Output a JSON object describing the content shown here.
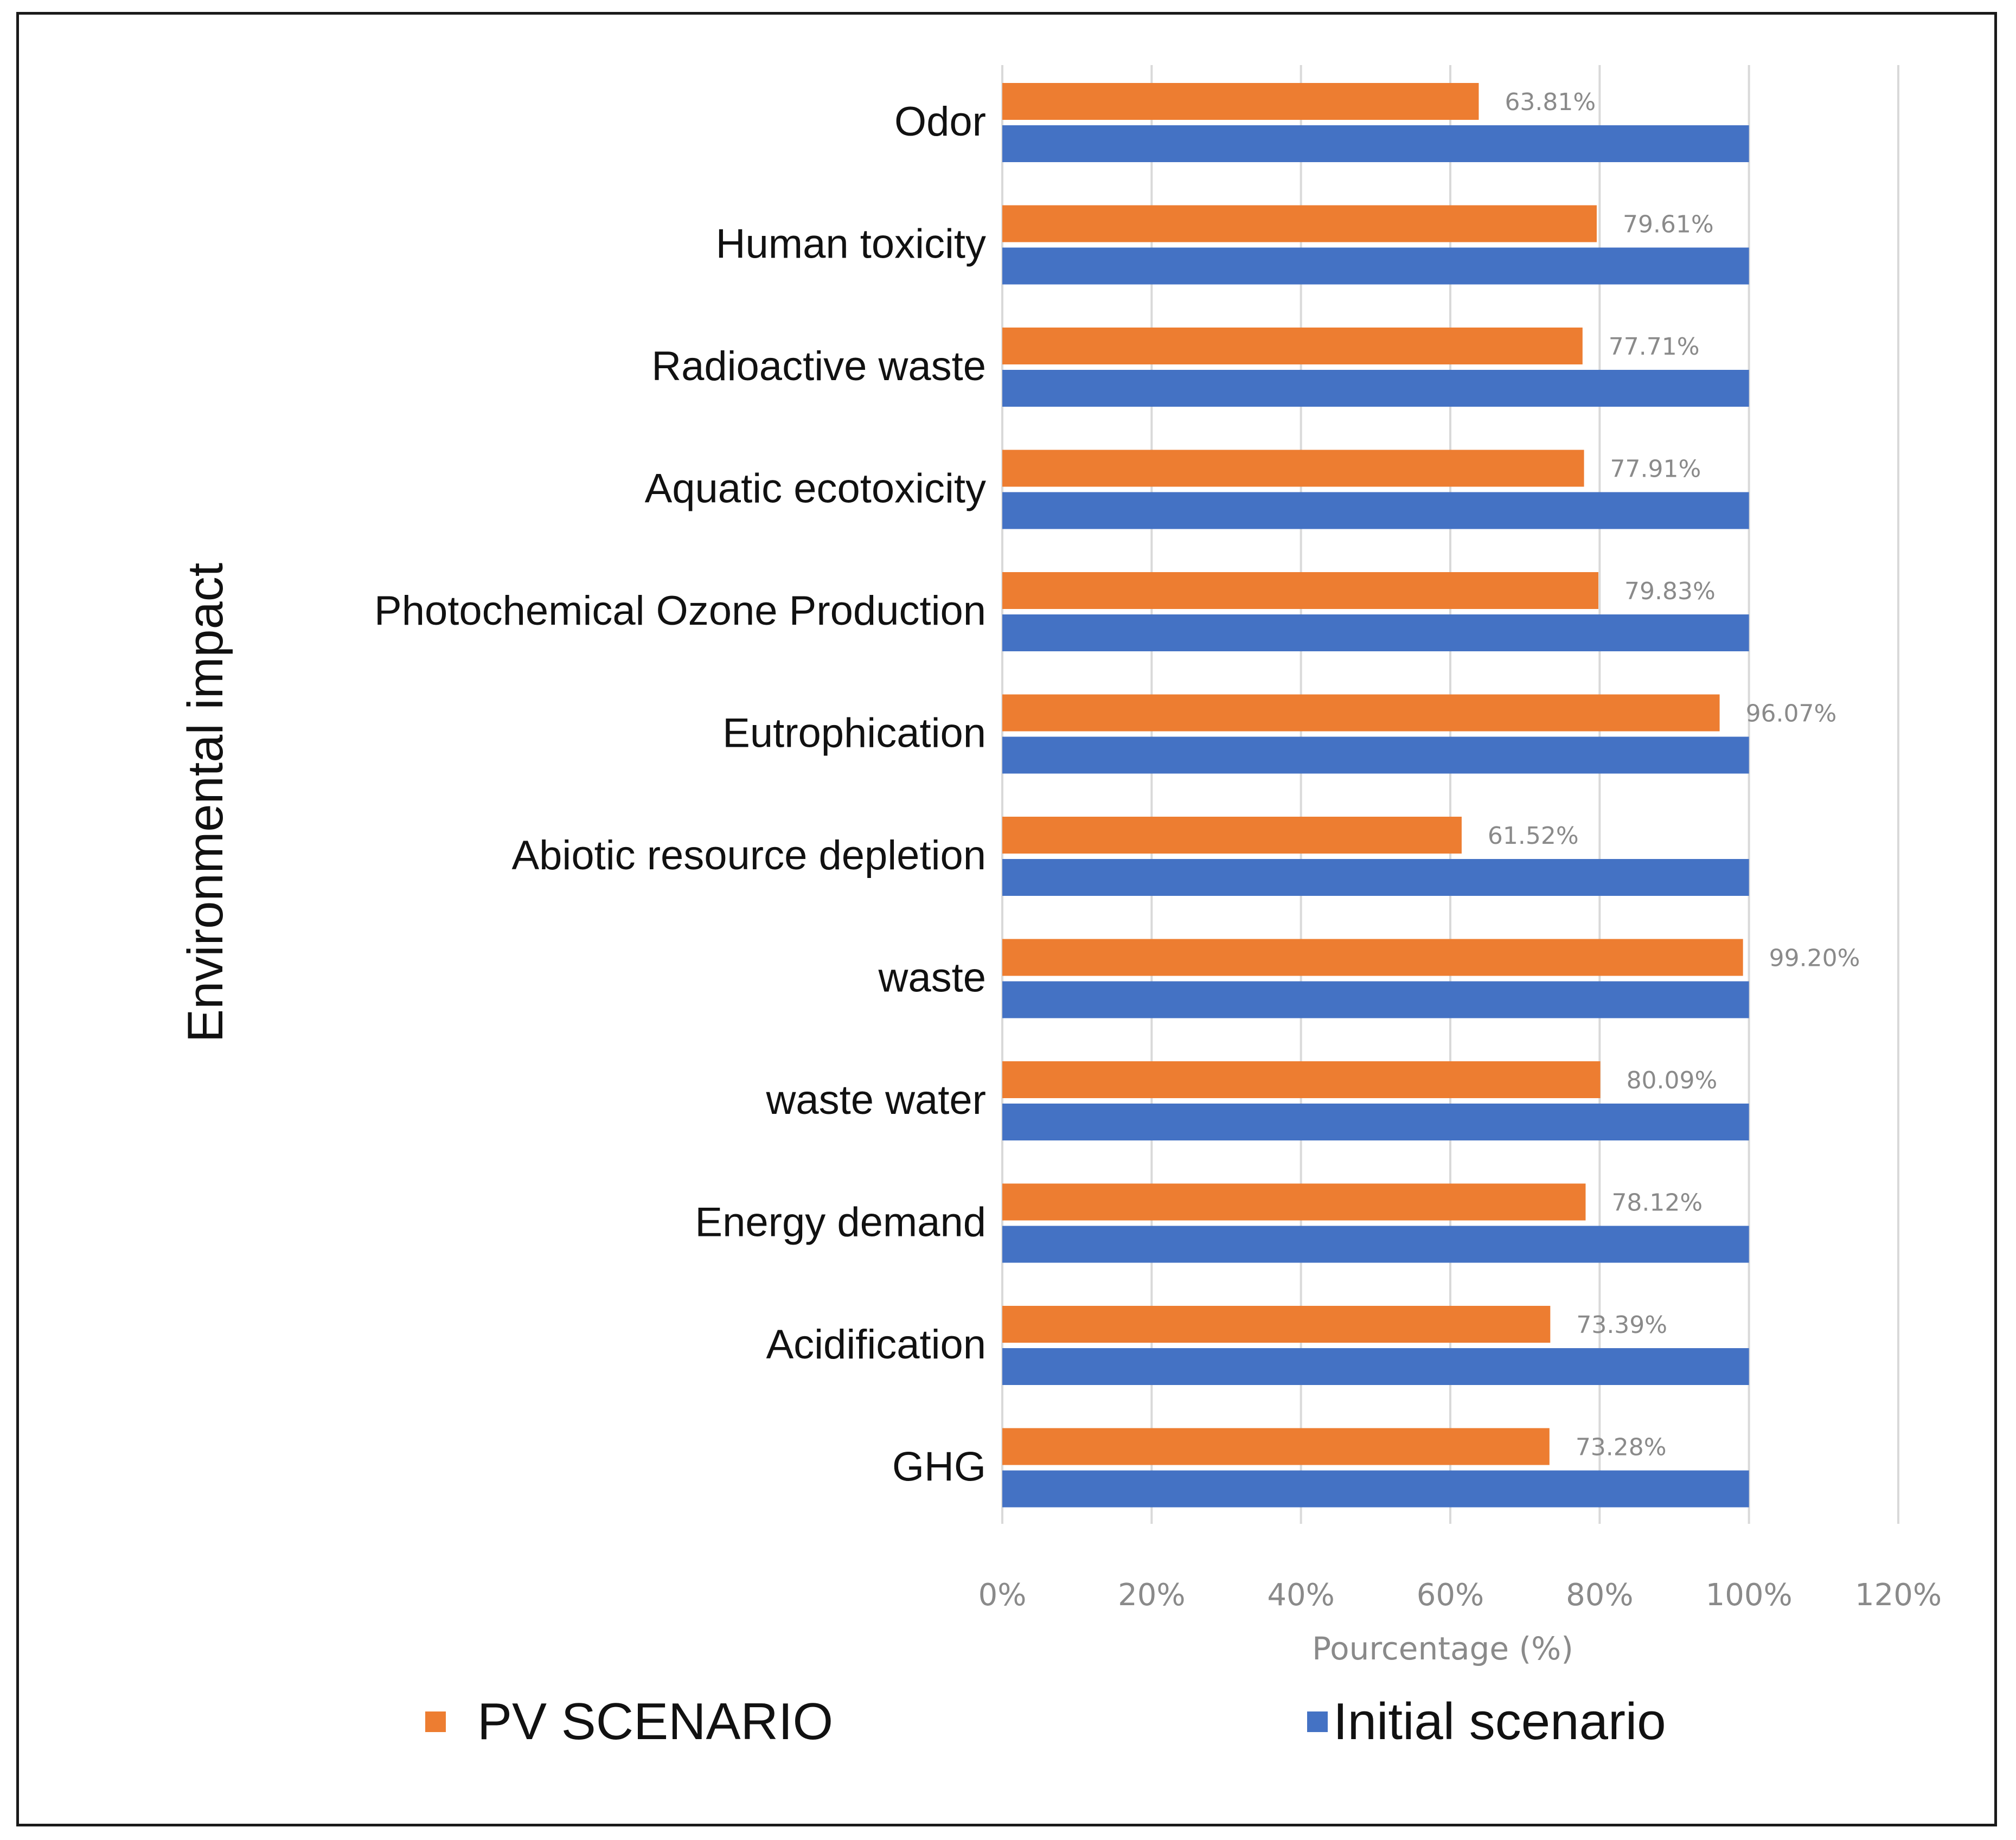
{
  "chart_data": {
    "type": "bar",
    "orientation": "horizontal",
    "title": "",
    "xlabel": "Pourcentage  (%)",
    "ylabel": "Environmental impact",
    "xlim": [
      0,
      120
    ],
    "xticks": [
      0,
      20,
      40,
      60,
      80,
      100,
      120
    ],
    "xtick_labels": [
      "0%",
      "20%",
      "40%",
      "60%",
      "80%",
      "100%",
      "120%"
    ],
    "grid": "vertical",
    "categories": [
      "Odor",
      "Human toxicity",
      "Radioactive waste",
      "Aquatic ecotoxicity",
      "Photochemical Ozone Production",
      "Eutrophication",
      "Abiotic resource depletion",
      "waste",
      "waste water",
      "Energy demand",
      "Acidification",
      "GHG"
    ],
    "series": [
      {
        "name": "PV SCENARIO",
        "color": "#ED7D31",
        "values": [
          63.81,
          79.61,
          77.71,
          77.91,
          79.83,
          96.07,
          61.52,
          99.2,
          80.09,
          78.12,
          73.39,
          73.28
        ],
        "labels": [
          "63.81%",
          "79.61%",
          "77.71%",
          "77.91%",
          "79.83%",
          "96.07%",
          "61.52%",
          "99.20%",
          "80.09%",
          "78.12%",
          "73.39%",
          "73.28%"
        ]
      },
      {
        "name": "Initial scenario",
        "color": "#4472C4",
        "values": [
          100,
          100,
          100,
          100,
          100,
          100,
          100,
          100,
          100,
          100,
          100,
          100
        ]
      }
    ],
    "legend": {
      "position": "bottom",
      "entries": [
        "PV SCENARIO",
        "Initial scenario"
      ]
    }
  }
}
